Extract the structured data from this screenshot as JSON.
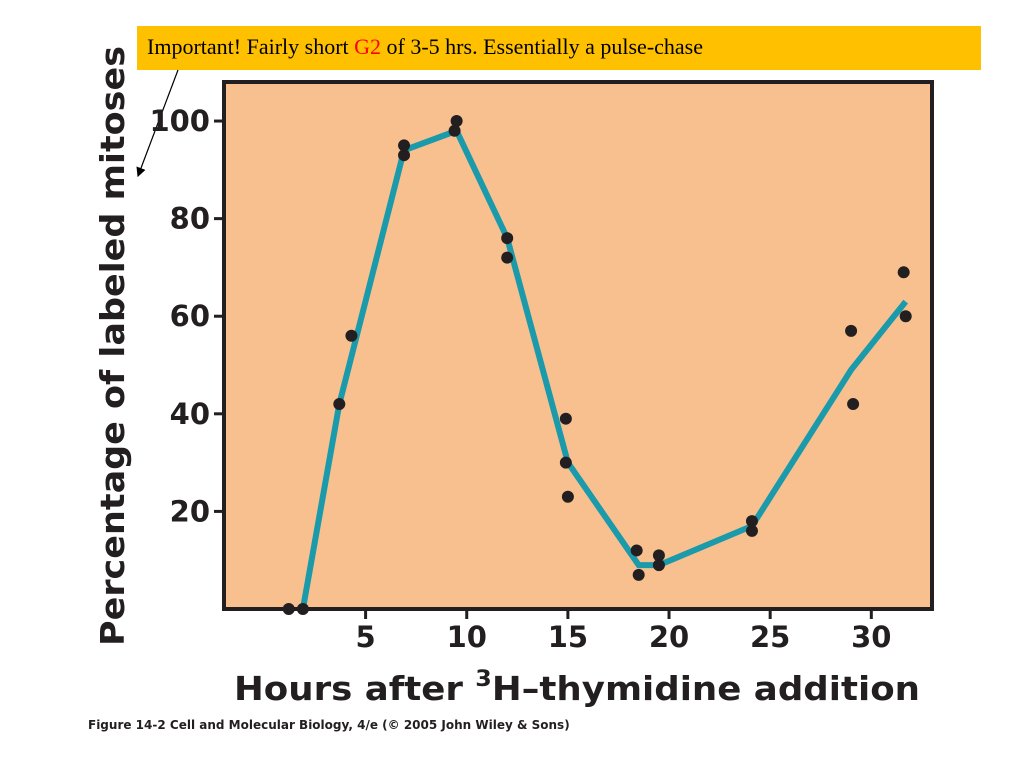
{
  "callout": {
    "prefix": "Important! Fairly short ",
    "highlight": "G2",
    "suffix": " of 3-5  hrs. Essentially a pulse-chase",
    "background_color": "#ffc000",
    "highlight_color": "#ff0000"
  },
  "caption": "Figure 14-2  Cell and Molecular Biology, 4/e (© 2005 John Wiley & Sons)",
  "chart_data": {
    "type": "scatter",
    "title": "",
    "xlabel_prefix": "Hours after ",
    "xlabel_superscript": "3",
    "xlabel_suffix": "H–thymidine addition",
    "ylabel": "Percentage of labeled mitoses",
    "xlim": [
      -2,
      33
    ],
    "ylim": [
      0,
      108
    ],
    "xticks": [
      5,
      10,
      15,
      20,
      25,
      30
    ],
    "yticks": [
      20,
      40,
      60,
      80,
      100
    ],
    "grid": false,
    "plot_background": "#f9c08f",
    "line_color": "#1a9aaa",
    "point_color": "#231f20",
    "series": [
      {
        "style": "points",
        "x": [
          1.2,
          1.9,
          3.7,
          4.3,
          6.9,
          6.9,
          9.4,
          9.5,
          12.0,
          12.0,
          14.9,
          14.9,
          15.0,
          18.4,
          18.5,
          19.5,
          19.5,
          24.1,
          24.1,
          29.0,
          29.1,
          31.6,
          31.7
        ],
        "y": [
          0,
          0,
          42,
          56,
          93,
          95,
          98,
          100,
          76,
          72,
          39,
          30,
          23,
          12,
          7,
          11,
          9,
          18,
          16,
          57,
          42,
          69,
          60
        ]
      },
      {
        "style": "line",
        "x": [
          1.9,
          3.7,
          6.9,
          9.5,
          12.0,
          15.0,
          18.5,
          19.5,
          24.1,
          29.0,
          31.7
        ],
        "y": [
          0,
          42,
          94,
          98,
          76,
          30,
          9,
          9,
          17,
          49,
          63
        ]
      }
    ]
  }
}
